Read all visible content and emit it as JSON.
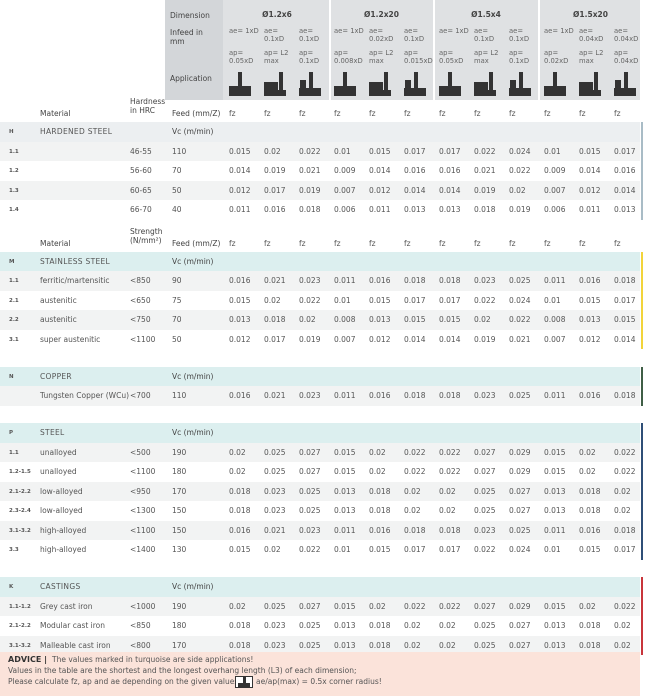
{
  "header": {
    "dimension_label": "Dimension",
    "infeed_label": "Infeed in mm",
    "application_label": "Application",
    "dimensions": [
      {
        "name": "Ø1.2x6",
        "ae": [
          "ae= 1xD",
          "ae= 0.1xD",
          "ae= 0.1xD"
        ],
        "ap": [
          "ap= 0.05xD",
          "ap= L2 max",
          "ap= 0.1xD"
        ]
      },
      {
        "name": "Ø1.2x20",
        "ae": [
          "ae= 1xD",
          "ae= 0.02xD",
          "ae= 0.1xD"
        ],
        "ap": [
          "ap= 0.008xD",
          "ap= L2 max",
          "ap= 0.015xD"
        ]
      },
      {
        "name": "Ø1.5x4",
        "ae": [
          "ae= 1xD",
          "ae= 0.1xD",
          "ae= 0.1xD"
        ],
        "ap": [
          "ap= 0.05xD",
          "ap= L2 max",
          "ap= 0.1xD"
        ]
      },
      {
        "name": "Ø1.5x20",
        "ae": [
          "ae= 1xD",
          "ae= 0.04xD",
          "ae= 0.04xD"
        ],
        "ap": [
          "ap= 0.02xD",
          "ap= L2 max",
          "ap= 0.04xD"
        ]
      }
    ]
  },
  "sections": [
    {
      "code": "H",
      "name": "HARDENED STEEL",
      "vc_label": "Vc (m/min)",
      "color": "#a9bcc6",
      "columns": {
        "material": "Material",
        "property": "Hardness in HRC",
        "feed": "Feed (mm/Z)",
        "fz": [
          "fz",
          "fz",
          "fz",
          "fz",
          "fz",
          "fz",
          "fz",
          "fz",
          "fz",
          "fz",
          "fz",
          "fz"
        ]
      },
      "rows": [
        {
          "id": "1.1",
          "property": "46-55",
          "vc": 110,
          "values": [
            0.015,
            0.02,
            0.022,
            0.01,
            0.015,
            0.017,
            0.017,
            0.022,
            0.024,
            0.01,
            0.015,
            0.017
          ]
        },
        {
          "id": "1.2",
          "property": "56-60",
          "vc": 70,
          "values": [
            0.014,
            0.019,
            0.021,
            0.009,
            0.014,
            0.016,
            0.016,
            0.021,
            0.022,
            0.009,
            0.014,
            0.016
          ]
        },
        {
          "id": "1.3",
          "property": "60-65",
          "vc": 50,
          "values": [
            0.012,
            0.017,
            0.019,
            0.007,
            0.012,
            0.014,
            0.014,
            0.019,
            0.02,
            0.007,
            0.012,
            0.014
          ]
        },
        {
          "id": "1.4",
          "property": "66-70",
          "vc": 40,
          "values": [
            0.011,
            0.016,
            0.018,
            0.006,
            0.011,
            0.013,
            0.013,
            0.018,
            0.019,
            0.006,
            0.011,
            0.013
          ]
        }
      ]
    },
    {
      "code": "M",
      "name": "STAINLESS STEEL",
      "vc_label": "Vc (m/min)",
      "color": "#f2d43a",
      "columns": {
        "material": "Material",
        "property": "Strength (N/mm²)",
        "feed": "Feed (mm/Z)",
        "fz": [
          "fz",
          "fz",
          "fz",
          "fz",
          "fz",
          "fz",
          "fz",
          "fz",
          "fz",
          "fz",
          "fz",
          "fz"
        ]
      },
      "rows": [
        {
          "id": "1.1",
          "material": "ferritic/martensitic",
          "property": "<850",
          "vc": 90,
          "values": [
            0.016,
            0.021,
            0.023,
            0.011,
            0.016,
            0.018,
            0.018,
            0.023,
            0.025,
            0.011,
            0.016,
            0.018
          ]
        },
        {
          "id": "2.1",
          "material": "austenitic",
          "property": "<650",
          "vc": 75,
          "values": [
            0.015,
            0.02,
            0.022,
            0.01,
            0.015,
            0.017,
            0.017,
            0.022,
            0.024,
            0.01,
            0.015,
            0.017
          ]
        },
        {
          "id": "2.2",
          "material": "austenitic",
          "property": "<750",
          "vc": 70,
          "values": [
            0.013,
            0.018,
            0.02,
            0.008,
            0.013,
            0.015,
            0.015,
            0.02,
            0.022,
            0.008,
            0.013,
            0.015
          ]
        },
        {
          "id": "3.1",
          "material": "super austenitic",
          "property": "<1100",
          "vc": 50,
          "values": [
            0.012,
            0.017,
            0.019,
            0.007,
            0.012,
            0.014,
            0.014,
            0.019,
            0.021,
            0.007,
            0.012,
            0.014
          ]
        }
      ]
    },
    {
      "code": "N",
      "name": "COPPER",
      "vc_label": "Vc (m/min)",
      "color": "#3f5e46",
      "rows": [
        {
          "material": "Tungsten Copper (WCu)",
          "property": "<700",
          "vc": 110,
          "values": [
            0.016,
            0.021,
            0.023,
            0.011,
            0.016,
            0.018,
            0.018,
            0.023,
            0.025,
            0.011,
            0.016,
            0.018
          ]
        }
      ]
    },
    {
      "code": "P",
      "name": "STEEL",
      "vc_label": "Vc (m/min)",
      "color": "#2f4f77",
      "rows": [
        {
          "id": "1.1",
          "material": "unalloyed",
          "property": "<500",
          "vc": 190,
          "values": [
            0.02,
            0.025,
            0.027,
            0.015,
            0.02,
            0.022,
            0.022,
            0.027,
            0.029,
            0.015,
            0.02,
            0.022
          ]
        },
        {
          "id": "1.2-1.5",
          "material": "unalloyed",
          "property": "<1100",
          "vc": 180,
          "values": [
            0.02,
            0.025,
            0.027,
            0.015,
            0.02,
            0.022,
            0.022,
            0.027,
            0.029,
            0.015,
            0.02,
            0.022
          ]
        },
        {
          "id": "2.1-2.2",
          "material": "low-alloyed",
          "property": "<950",
          "vc": 170,
          "values": [
            0.018,
            0.023,
            0.025,
            0.013,
            0.018,
            0.02,
            0.02,
            0.025,
            0.027,
            0.013,
            0.018,
            0.02
          ]
        },
        {
          "id": "2.3-2.4",
          "material": "low-alloyed",
          "property": "<1300",
          "vc": 150,
          "values": [
            0.018,
            0.023,
            0.025,
            0.013,
            0.018,
            0.02,
            0.02,
            0.025,
            0.027,
            0.013,
            0.018,
            0.02
          ]
        },
        {
          "id": "3.1-3.2",
          "material": "high-alloyed",
          "property": "<1100",
          "vc": 150,
          "values": [
            0.016,
            0.021,
            0.023,
            0.011,
            0.016,
            0.018,
            0.018,
            0.023,
            0.025,
            0.011,
            0.016,
            0.018
          ]
        },
        {
          "id": "3.3",
          "material": "high-alloyed",
          "property": "<1400",
          "vc": 130,
          "values": [
            0.015,
            0.02,
            0.022,
            0.01,
            0.015,
            0.017,
            0.017,
            0.022,
            0.024,
            0.01,
            0.015,
            0.017
          ]
        }
      ]
    },
    {
      "code": "K",
      "name": "CASTINGS",
      "vc_label": "Vc (m/min)",
      "color": "#c8353b",
      "rows": [
        {
          "id": "1.1-1.2",
          "material": "Grey cast iron",
          "property": "<1000",
          "vc": 190,
          "values": [
            0.02,
            0.025,
            0.027,
            0.015,
            0.02,
            0.022,
            0.022,
            0.027,
            0.029,
            0.015,
            0.02,
            0.022
          ]
        },
        {
          "id": "2.1-2.2",
          "material": "Modular cast iron",
          "property": "<850",
          "vc": 180,
          "values": [
            0.018,
            0.023,
            0.025,
            0.013,
            0.018,
            0.02,
            0.02,
            0.025,
            0.027,
            0.013,
            0.018,
            0.02
          ]
        },
        {
          "id": "3.1-3.2",
          "material": "Malleable cast iron",
          "property": "<800",
          "vc": 170,
          "values": [
            0.018,
            0.023,
            0.025,
            0.013,
            0.018,
            0.02,
            0.02,
            0.025,
            0.027,
            0.013,
            0.018,
            0.02
          ]
        }
      ]
    }
  ],
  "advice": {
    "label": "ADVICE |",
    "lines": [
      "The values marked in turquoise are side applications!",
      "Values in the table are the shortest and the longest overhang length (L3) of each dimension;",
      "Please calculate fz, ap and ae depending on the given values."
    ],
    "note": "ae/ap(max) = 0.5x corner radius!"
  }
}
